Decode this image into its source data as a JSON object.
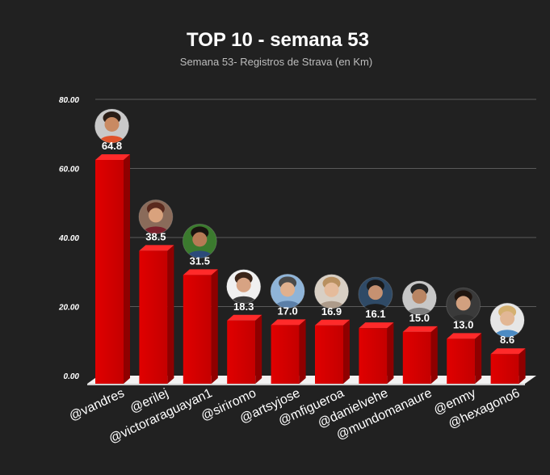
{
  "chart_data": {
    "type": "bar",
    "title": "TOP 10 - semana 53",
    "subtitle": "Semana 53- Registros de Strava (en Km)",
    "xlabel": "",
    "ylabel": "",
    "ylim": [
      0,
      80
    ],
    "yticks": [
      0,
      20,
      40,
      60,
      80
    ],
    "ytick_labels": [
      "0.00",
      "20.00",
      "40.00",
      "60.00",
      "80.00"
    ],
    "grid": true,
    "categories": [
      "@vandres",
      "@erilej",
      "@victoraraguayan1",
      "@siriromo",
      "@artsyjose",
      "@mfigueroa",
      "@danielvehe",
      "@mundomanaure",
      "@enmy",
      "@hexagono6"
    ],
    "values": [
      64.8,
      38.5,
      31.5,
      18.3,
      17.0,
      16.9,
      16.1,
      15.0,
      13.0,
      8.6
    ],
    "value_labels": [
      "64.8",
      "38.5",
      "31.5",
      "18.3",
      "17.0",
      "16.9",
      "16.1",
      "15.0",
      "13.0",
      "8.6"
    ],
    "bar_color": "#cc0000",
    "background_color": "#212121"
  }
}
